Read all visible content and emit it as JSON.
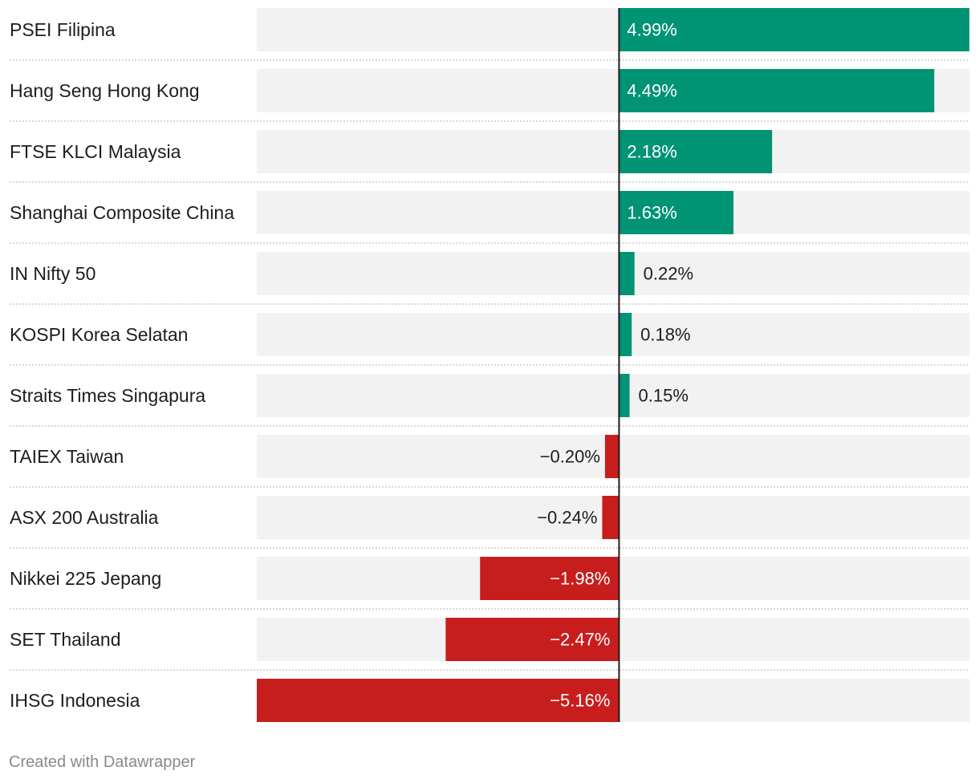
{
  "chart_data": {
    "type": "bar",
    "orientation": "horizontal",
    "categories": [
      "PSEI Filipina",
      "Hang Seng Hong Kong",
      "FTSE KLCI Malaysia",
      "Shanghai Composite China",
      "IN Nifty 50",
      "KOSPI Korea Selatan",
      "Straits Times Singapura",
      "TAIEX Taiwan",
      "ASX 200 Australia",
      "Nikkei 225 Jepang",
      "SET Thailand",
      "IHSG Indonesia"
    ],
    "values": [
      4.99,
      4.49,
      2.18,
      1.63,
      0.22,
      0.18,
      0.15,
      -0.2,
      -0.24,
      -1.98,
      -2.47,
      -5.16
    ],
    "value_labels": [
      "4.99%",
      "4.49%",
      "2.18%",
      "1.63%",
      "0.22%",
      "0.18%",
      "0.15%",
      "−0.20%",
      "−0.24%",
      "−1.98%",
      "−2.47%",
      "−5.16%"
    ],
    "xlim": [
      -5.16,
      4.99
    ],
    "colors": {
      "positive": "#009374",
      "negative": "#c71e1d",
      "track": "#f2f2f2",
      "zero_line": "#1d1d1d",
      "separator": "#cccccc"
    },
    "legend": "none",
    "grid": false
  },
  "footer": {
    "credit": "Created with Datawrapper"
  }
}
